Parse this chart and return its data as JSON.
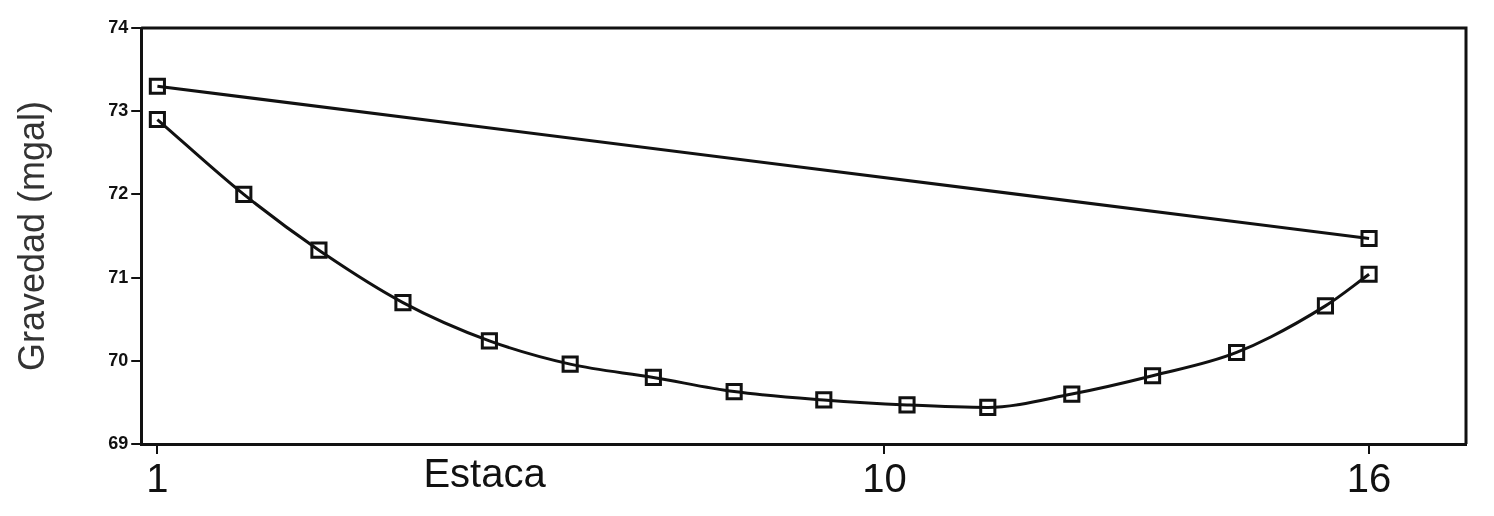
{
  "chart_data": {
    "type": "line",
    "xlabel": "Estaca",
    "ylabel": "Gravedad (mgal)",
    "series": [
      {
        "color": "#111111",
        "x": [
          1,
          16
        ],
        "values": [
          73.3,
          71.47
        ]
      },
      {
        "color": "#111111",
        "x": [
          1,
          2.07,
          3.0,
          4.04,
          5.11,
          6.11,
          7.14,
          8.14,
          9.25,
          10.28,
          11.28,
          12.32,
          13.32,
          14.36,
          15.46,
          16
        ],
        "values": [
          72.9,
          72.0,
          71.33,
          70.7,
          70.24,
          69.96,
          69.8,
          69.63,
          69.53,
          69.47,
          69.44,
          69.6,
          69.82,
          70.1,
          70.66,
          71.04
        ]
      }
    ],
    "xlim": [
      0.8,
      17.2
    ],
    "xticks": [
      1,
      10,
      16
    ],
    "ylim": [
      69,
      74
    ],
    "yticks": [
      69,
      70,
      71,
      72,
      73,
      74
    ],
    "grid": false,
    "legend": false,
    "marker": "square",
    "line_style": "solid"
  }
}
